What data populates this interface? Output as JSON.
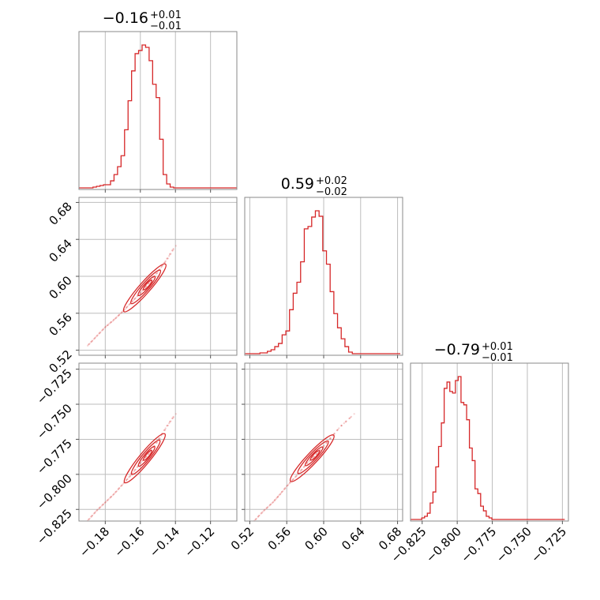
{
  "chart_data": {
    "type": "corner",
    "color": "#d62728",
    "params": [
      {
        "title": {
          "median": "−0.16",
          "plus": "+0.01",
          "minus": "−0.01"
        },
        "range": [
          -0.195,
          -0.105
        ],
        "ticks": [
          -0.18,
          -0.16,
          -0.14,
          -0.12
        ],
        "tick_labels": [
          "−0.18",
          "−0.16",
          "−0.14",
          "−0.12"
        ],
        "hist": {
          "x": [
            -0.195,
            -0.193,
            -0.191,
            -0.189,
            -0.187,
            -0.185,
            -0.183,
            -0.181,
            -0.179,
            -0.177,
            -0.175,
            -0.173,
            -0.171,
            -0.169,
            -0.167,
            -0.165,
            -0.163,
            -0.161,
            -0.159,
            -0.157,
            -0.155,
            -0.153,
            -0.151,
            -0.149,
            -0.147,
            -0.145,
            -0.143,
            -0.141,
            -0.139,
            -0.137,
            -0.135,
            -0.133,
            -0.131,
            -0.129,
            -0.127,
            -0.125,
            -0.123,
            -0.121,
            -0.119,
            -0.117,
            -0.115,
            -0.113,
            -0.111,
            -0.109,
            -0.107,
            -0.105
          ],
          "counts": [
            1,
            1,
            1,
            1,
            2,
            3,
            4,
            5,
            5,
            10,
            18,
            28,
            42,
            75,
            112,
            150,
            172,
            176,
            183,
            180,
            163,
            133,
            116,
            63,
            18,
            6,
            2,
            1,
            1,
            1,
            1,
            1,
            1,
            1,
            1,
            1,
            1,
            1,
            1,
            1,
            1,
            1,
            1,
            1,
            1,
            0
          ]
        }
      },
      {
        "title": {
          "median": "0.59",
          "plus": "+0.02",
          "minus": "−0.02"
        },
        "range": [
          0.5145,
          0.6855
        ],
        "ticks": [
          0.52,
          0.56,
          0.6,
          0.64,
          0.68
        ],
        "tick_labels": [
          "0.52",
          "0.56",
          "0.60",
          "0.64",
          "0.68"
        ],
        "hist": {
          "x": [
            0.515,
            0.519,
            0.523,
            0.527,
            0.531,
            0.535,
            0.539,
            0.543,
            0.547,
            0.551,
            0.555,
            0.559,
            0.563,
            0.567,
            0.571,
            0.575,
            0.579,
            0.583,
            0.587,
            0.591,
            0.595,
            0.599,
            0.603,
            0.607,
            0.611,
            0.615,
            0.619,
            0.623,
            0.627,
            0.631,
            0.635,
            0.639,
            0.643,
            0.647,
            0.651,
            0.655,
            0.659,
            0.663,
            0.667,
            0.671,
            0.675,
            0.679,
            0.683
          ],
          "counts": [
            1,
            1,
            1,
            1,
            2,
            2,
            4,
            6,
            10,
            14,
            25,
            30,
            57,
            78,
            92,
            118,
            160,
            163,
            175,
            183,
            176,
            132,
            115,
            80,
            52,
            34,
            20,
            10,
            3,
            1,
            1,
            1,
            1,
            1,
            1,
            1,
            1,
            1,
            1,
            1,
            1,
            1,
            0
          ]
        }
      },
      {
        "title": {
          "median": "−0.79",
          "plus": "+0.01",
          "minus": "−0.01"
        },
        "range": [
          -0.8333,
          -0.7207
        ],
        "ticks": [
          -0.825,
          -0.8,
          -0.775,
          -0.75,
          -0.725
        ],
        "tick_labels": [
          "−0.825",
          "−0.800",
          "−0.775",
          "−0.750",
          "−0.725"
        ],
        "hist": {
          "x": [
            -0.8333,
            -0.8313,
            -0.8293,
            -0.8273,
            -0.8253,
            -0.8233,
            -0.8213,
            -0.8193,
            -0.8173,
            -0.8153,
            -0.8133,
            -0.8113,
            -0.8093,
            -0.8073,
            -0.8053,
            -0.8033,
            -0.8013,
            -0.7993,
            -0.7973,
            -0.7953,
            -0.7933,
            -0.7913,
            -0.7893,
            -0.7873,
            -0.7853,
            -0.7833,
            -0.7813,
            -0.7793,
            -0.7773,
            -0.7753,
            -0.7733,
            -0.7713,
            -0.7693,
            -0.7673,
            -0.7653,
            -0.7633,
            -0.7613,
            -0.7593,
            -0.7573,
            -0.7553,
            -0.7533,
            -0.7513,
            -0.7493,
            -0.7473,
            -0.7453,
            -0.7433,
            -0.7413,
            -0.7393,
            -0.7373,
            -0.7353,
            -0.7333,
            -0.7313,
            -0.7293,
            -0.7273,
            -0.7253,
            -0.7233
          ],
          "counts": [
            1,
            1,
            1,
            1,
            3,
            5,
            9,
            22,
            36,
            68,
            94,
            124,
            168,
            176,
            164,
            162,
            178,
            183,
            150,
            147,
            128,
            92,
            76,
            40,
            34,
            18,
            12,
            5,
            3,
            1,
            1,
            1,
            1,
            1,
            1,
            1,
            1,
            1,
            1,
            1,
            1,
            1,
            1,
            1,
            1,
            1,
            1,
            1,
            1,
            1,
            1,
            1,
            1,
            1,
            1,
            3
          ]
        }
      }
    ],
    "scatter": {
      "p": [
        -0.19,
        -0.185,
        -0.18,
        -0.175,
        -0.17,
        -0.165,
        -0.16,
        -0.155,
        -0.15,
        -0.145,
        -0.14
      ],
      "q": [
        0.525,
        0.535,
        0.545,
        0.553,
        0.562,
        0.572,
        0.582,
        0.593,
        0.605,
        0.618,
        0.633
      ],
      "r": [
        -0.833,
        -0.826,
        -0.82,
        -0.814,
        -0.807,
        -0.8,
        -0.792,
        -0.785,
        -0.776,
        -0.766,
        -0.757
      ]
    }
  }
}
